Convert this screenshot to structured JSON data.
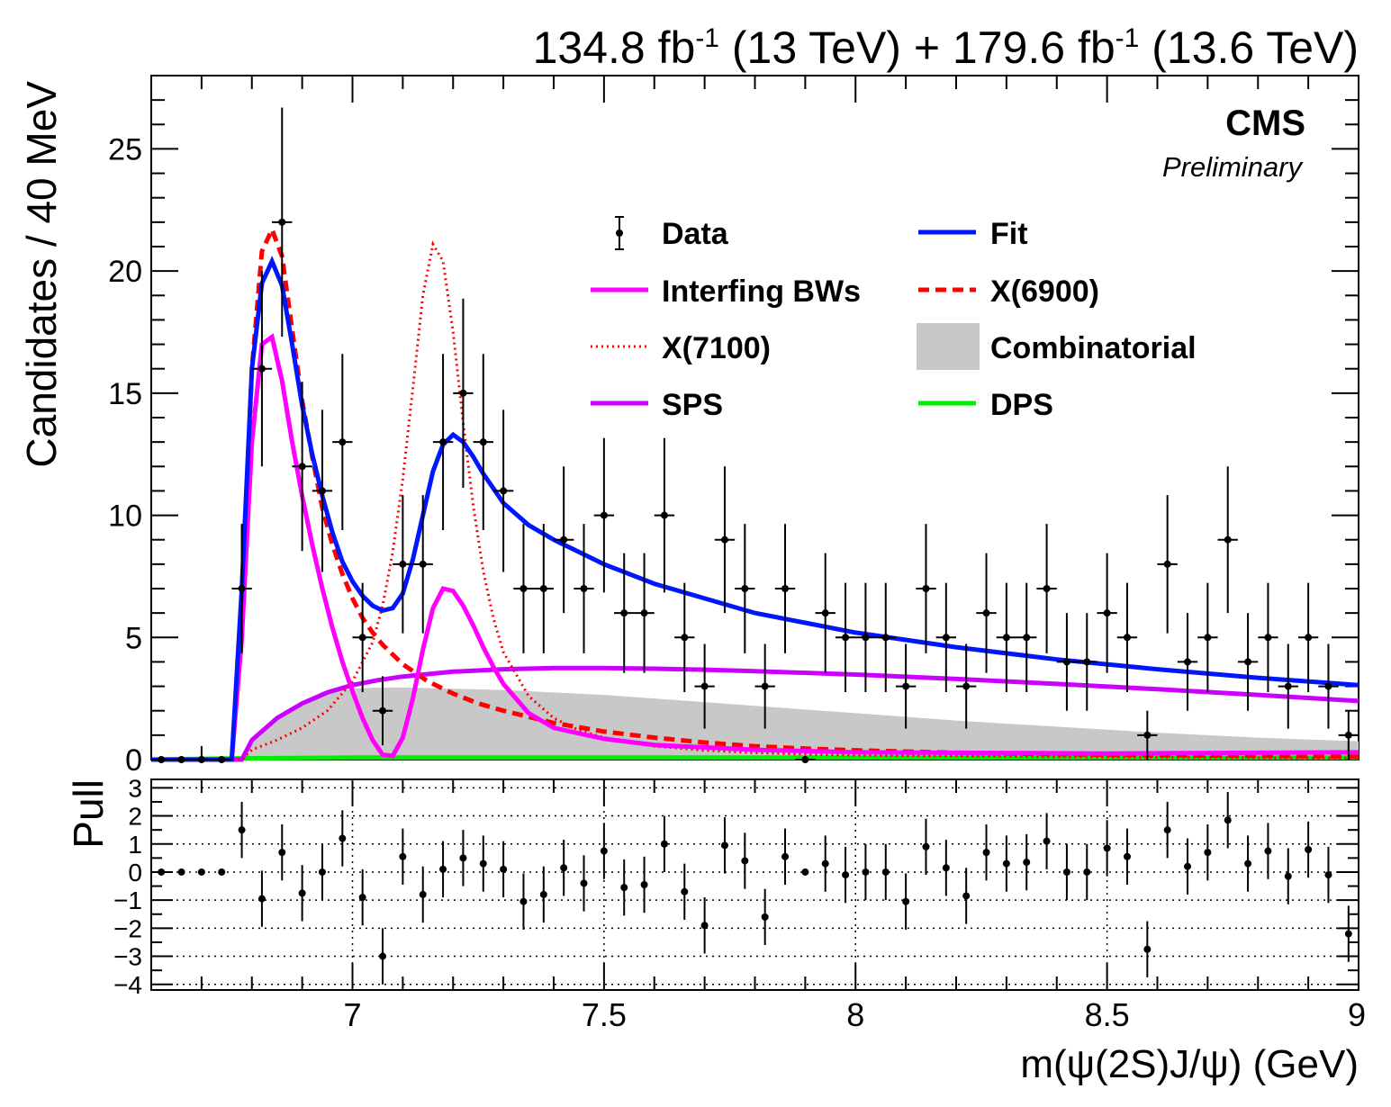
{
  "header": {
    "lumi_text": "134.8 fb-1 (13 TeV) + 179.6 fb-1 (13.6 TeV)",
    "lumi_a": "134.8 fb",
    "lumi_a_sup": "-1",
    "lumi_a_energy": " (13 TeV) + 179.6 fb",
    "lumi_b_sup": "-1",
    "lumi_b_energy": " (13.6 TeV)",
    "experiment": "CMS",
    "status": "Preliminary"
  },
  "colors": {
    "fit": "#0016ff",
    "interfering_bws": "#ff00ff",
    "x6900": "#ff0000",
    "x7100": "#ff0000",
    "combinatorial": "#c8c8c8",
    "sps": "#cc00ff",
    "dps": "#00ee00",
    "data": "#000000"
  },
  "chart_data": [
    {
      "type": "scatter",
      "panel": "main",
      "xlim": [
        6.6,
        9.0
      ],
      "ylim": [
        0,
        28
      ],
      "ylabel": "Candidates / 40 MeV",
      "yticks": [
        0,
        5,
        10,
        15,
        20,
        25
      ],
      "bin_width": 0.04,
      "legend": {
        "placement": "top-right",
        "entries": [
          {
            "label": "Data",
            "style": "points"
          },
          {
            "label": "Fit",
            "style": "line",
            "color": "#0016ff"
          },
          {
            "label": "Interfing BWs",
            "style": "line",
            "color": "#ff00ff"
          },
          {
            "label": "X(6900)",
            "style": "dashed",
            "color": "#ff0000"
          },
          {
            "label": "X(7100)",
            "style": "dotted",
            "color": "#ff0000"
          },
          {
            "label": "Combinatorial",
            "style": "fill",
            "color": "#c8c8c8"
          },
          {
            "label": "SPS",
            "style": "line",
            "color": "#cc00ff"
          },
          {
            "label": "DPS",
            "style": "line",
            "color": "#00ee00"
          }
        ]
      },
      "data_points": {
        "x": [
          6.62,
          6.66,
          6.7,
          6.74,
          6.78,
          6.82,
          6.86,
          6.9,
          6.94,
          6.98,
          7.02,
          7.06,
          7.1,
          7.14,
          7.18,
          7.22,
          7.26,
          7.3,
          7.34,
          7.38,
          7.42,
          7.46,
          7.5,
          7.54,
          7.58,
          7.62,
          7.66,
          7.7,
          7.74,
          7.78,
          7.82,
          7.86,
          7.9,
          7.94,
          7.98,
          8.02,
          8.06,
          8.1,
          8.14,
          8.18,
          8.22,
          8.26,
          8.3,
          8.34,
          8.38,
          8.42,
          8.46,
          8.5,
          8.54,
          8.58,
          8.62,
          8.66,
          8.7,
          8.74,
          8.78,
          8.82,
          8.86,
          8.9,
          8.94,
          8.98
        ],
        "y": [
          0,
          0,
          0,
          0,
          7,
          16,
          22,
          12,
          11,
          13,
          5,
          2,
          8,
          8,
          13,
          15,
          13,
          11,
          7,
          7,
          9,
          7,
          10,
          6,
          6,
          10,
          5,
          3,
          9,
          7,
          3,
          7,
          0,
          6,
          5,
          5,
          5,
          3,
          7,
          5,
          3,
          6,
          5,
          5,
          7,
          4,
          4,
          6,
          5,
          1,
          8,
          4,
          5,
          9,
          4,
          5,
          3,
          5,
          3,
          1
        ]
      },
      "curves": {
        "fit": {
          "x": [
            6.6,
            6.76,
            6.78,
            6.8,
            6.82,
            6.84,
            6.86,
            6.88,
            6.9,
            6.92,
            6.94,
            6.96,
            6.98,
            7.0,
            7.02,
            7.04,
            7.06,
            7.08,
            7.1,
            7.12,
            7.14,
            7.16,
            7.18,
            7.2,
            7.22,
            7.24,
            7.26,
            7.28,
            7.3,
            7.35,
            7.4,
            7.45,
            7.5,
            7.6,
            7.7,
            7.8,
            7.9,
            8.0,
            8.2,
            8.4,
            8.6,
            8.8,
            9.0
          ],
          "y": [
            0,
            0,
            7,
            16,
            19.5,
            20.4,
            19.4,
            17.0,
            14.5,
            12.5,
            10.8,
            9.3,
            8.1,
            7.3,
            6.7,
            6.3,
            6.1,
            6.2,
            6.8,
            8.2,
            10.0,
            11.8,
            12.9,
            13.3,
            13.0,
            12.4,
            11.7,
            11.1,
            10.5,
            9.6,
            9.0,
            8.5,
            8.0,
            7.2,
            6.6,
            6.0,
            5.6,
            5.2,
            4.6,
            4.1,
            3.7,
            3.35,
            3.05
          ]
        },
        "interfering_bws": {
          "x": [
            6.6,
            6.76,
            6.78,
            6.8,
            6.82,
            6.84,
            6.86,
            6.88,
            6.9,
            6.92,
            6.94,
            6.96,
            6.98,
            7.0,
            7.02,
            7.04,
            7.06,
            7.08,
            7.1,
            7.12,
            7.14,
            7.16,
            7.18,
            7.2,
            7.22,
            7.24,
            7.26,
            7.28,
            7.3,
            7.35,
            7.4,
            7.5,
            7.6,
            7.8,
            8.0,
            8.5,
            9.0
          ],
          "y": [
            0,
            0,
            5,
            13,
            17.0,
            17.3,
            15.5,
            13.0,
            10.8,
            8.8,
            7.0,
            5.4,
            4.0,
            2.8,
            1.7,
            0.8,
            0.2,
            0.15,
            0.9,
            2.5,
            4.5,
            6.2,
            7.0,
            6.9,
            6.3,
            5.5,
            4.6,
            3.8,
            3.1,
            1.9,
            1.3,
            0.85,
            0.6,
            0.4,
            0.3,
            0.25,
            0.3
          ]
        },
        "x6900": {
          "x": [
            6.6,
            6.76,
            6.78,
            6.8,
            6.82,
            6.84,
            6.86,
            6.88,
            6.9,
            6.92,
            6.94,
            6.96,
            6.98,
            7.0,
            7.02,
            7.04,
            7.06,
            7.1,
            7.15,
            7.2,
            7.25,
            7.3,
            7.4,
            7.5,
            7.6,
            7.7,
            7.8,
            7.9,
            8.0,
            8.2,
            8.5,
            9.0
          ],
          "y": [
            0,
            0,
            6,
            16,
            20.8,
            21.7,
            20.6,
            17.6,
            14.7,
            12.4,
            10.3,
            8.8,
            7.6,
            6.6,
            5.8,
            5.2,
            4.7,
            3.9,
            3.2,
            2.7,
            2.3,
            2.0,
            1.5,
            1.15,
            0.9,
            0.7,
            0.55,
            0.45,
            0.38,
            0.28,
            0.2,
            0.12
          ]
        },
        "x7100": {
          "x": [
            6.6,
            6.78,
            6.8,
            6.85,
            6.9,
            6.95,
            7.0,
            7.04,
            7.06,
            7.08,
            7.1,
            7.12,
            7.14,
            7.16,
            7.18,
            7.2,
            7.22,
            7.24,
            7.26,
            7.28,
            7.3,
            7.35,
            7.4,
            7.45,
            7.5,
            7.6,
            7.7,
            7.8,
            7.9,
            8.0,
            8.5,
            9.0
          ],
          "y": [
            0,
            0,
            0.4,
            0.8,
            1.3,
            2.0,
            3.2,
            4.8,
            6.3,
            8.5,
            11.5,
            15.2,
            19.0,
            21.1,
            20.4,
            17.5,
            13.8,
            10.4,
            7.7,
            5.8,
            4.4,
            2.6,
            1.7,
            1.2,
            0.9,
            0.55,
            0.38,
            0.28,
            0.22,
            0.18,
            0.1,
            0.06
          ]
        },
        "combinatorial": {
          "x": [
            6.6,
            6.78,
            6.8,
            6.85,
            6.9,
            6.95,
            7.0,
            7.05,
            7.1,
            7.2,
            7.3,
            7.4,
            7.5,
            7.6,
            7.8,
            8.0,
            8.2,
            8.4,
            8.6,
            8.8,
            9.0
          ],
          "y": [
            0,
            0,
            0.8,
            1.8,
            2.4,
            2.75,
            2.9,
            2.95,
            2.95,
            2.9,
            2.85,
            2.75,
            2.65,
            2.5,
            2.2,
            1.9,
            1.6,
            1.35,
            1.1,
            0.9,
            0.75
          ]
        },
        "sps": {
          "x": [
            6.6,
            6.78,
            6.8,
            6.85,
            6.9,
            6.95,
            7.0,
            7.05,
            7.1,
            7.2,
            7.3,
            7.4,
            7.5,
            7.6,
            7.7,
            7.8,
            8.0,
            8.2,
            8.4,
            8.6,
            8.8,
            9.0
          ],
          "y": [
            0,
            0,
            0.8,
            1.7,
            2.3,
            2.75,
            3.05,
            3.25,
            3.4,
            3.6,
            3.7,
            3.75,
            3.75,
            3.72,
            3.68,
            3.62,
            3.48,
            3.3,
            3.1,
            2.88,
            2.65,
            2.4
          ]
        },
        "dps": {
          "x": [
            6.6,
            6.78,
            7.0,
            8.0,
            9.0
          ],
          "y": [
            0,
            0.05,
            0.08,
            0.08,
            0.08
          ]
        }
      }
    },
    {
      "type": "scatter",
      "panel": "pull",
      "xlim": [
        6.6,
        9.0
      ],
      "ylim": [
        -4.2,
        3.3
      ],
      "ylabel": "Pull",
      "xlabel": "m(ψ(2S)J/ψ) (GeV)",
      "yticks": [
        -4,
        -3,
        -2,
        -1,
        0,
        1,
        2,
        3
      ],
      "xticks": [
        7,
        7.5,
        8,
        8.5,
        9
      ],
      "xtick_labels": [
        "7",
        "7.5",
        "8",
        "8.5",
        "9"
      ],
      "grid": true,
      "x": [
        6.62,
        6.66,
        6.7,
        6.74,
        6.78,
        6.82,
        6.86,
        6.9,
        6.94,
        6.98,
        7.02,
        7.06,
        7.1,
        7.14,
        7.18,
        7.22,
        7.26,
        7.3,
        7.34,
        7.38,
        7.42,
        7.46,
        7.5,
        7.54,
        7.58,
        7.62,
        7.66,
        7.7,
        7.74,
        7.78,
        7.82,
        7.86,
        7.9,
        7.94,
        7.98,
        8.02,
        8.06,
        8.1,
        8.14,
        8.18,
        8.22,
        8.26,
        8.3,
        8.34,
        8.38,
        8.42,
        8.46,
        8.5,
        8.54,
        8.58,
        8.62,
        8.66,
        8.7,
        8.74,
        8.78,
        8.82,
        8.86,
        8.9,
        8.94,
        8.98
      ],
      "y": [
        0,
        0,
        0,
        0,
        1.5,
        -0.95,
        0.7,
        -0.75,
        0,
        1.2,
        -0.9,
        -3.0,
        0.55,
        -0.8,
        0.1,
        0.5,
        0.3,
        0.1,
        -1.05,
        -0.8,
        0.15,
        -0.4,
        0.75,
        -0.55,
        -0.45,
        1.0,
        -0.7,
        -1.9,
        0.95,
        0.4,
        -1.6,
        0.55,
        0,
        0.3,
        -0.1,
        0,
        0,
        -1.05,
        0.9,
        0.15,
        -0.85,
        0.7,
        0.3,
        0.35,
        1.1,
        0,
        0,
        0.85,
        0.55,
        -2.75,
        1.5,
        0.2,
        0.7,
        1.85,
        0.3,
        0.75,
        -0.15,
        0.8,
        -0.1,
        -2.2
      ],
      "err": [
        0,
        0,
        0,
        0,
        1,
        1,
        1,
        1,
        1,
        1,
        1,
        1,
        1,
        1,
        1,
        1,
        1,
        1,
        1,
        1,
        1,
        1,
        1,
        1,
        1,
        1,
        1,
        1,
        1,
        1,
        1,
        1,
        0,
        1,
        1,
        1,
        1,
        1,
        1,
        1,
        1,
        1,
        1,
        1,
        1,
        1,
        1,
        1,
        1,
        1,
        1,
        1,
        1,
        1,
        1,
        1,
        1,
        1,
        1,
        1
      ]
    }
  ]
}
